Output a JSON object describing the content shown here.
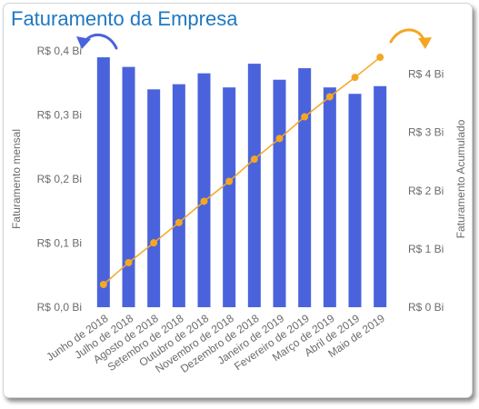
{
  "chart_data": {
    "type": "bar+line",
    "title": "Faturamento da Empresa",
    "categories": [
      "Junho de 2018",
      "Julho de 2018",
      "Agosto de 2018",
      "Setembro de 2018",
      "Outubro de 2018",
      "Novembro de 2018",
      "Dezembro de 2018",
      "Janeiro de 2019",
      "Fevereiro de 2019",
      "Março de 2019",
      "Abril de 2019",
      "Maio de 2019"
    ],
    "series": [
      {
        "name": "Faturamento mensal",
        "type": "bar",
        "axis": "left",
        "color": "#4a63dc",
        "values": [
          0.39,
          0.375,
          0.34,
          0.348,
          0.365,
          0.343,
          0.38,
          0.355,
          0.373,
          0.343,
          0.333,
          0.345
        ]
      },
      {
        "name": "Faturamento Acumulado",
        "type": "line",
        "axis": "right",
        "color": "#f5a623",
        "values": [
          0.39,
          0.765,
          1.105,
          1.453,
          1.818,
          2.161,
          2.541,
          2.896,
          3.269,
          3.612,
          3.945,
          4.29
        ]
      }
    ],
    "y_left": {
      "label": "Faturamento mensal",
      "range": [
        0,
        0.4
      ],
      "ticks": [
        0,
        0.1,
        0.2,
        0.3,
        0.4
      ],
      "tick_labels": [
        "R$ 0,0 Bi",
        "R$ 0,1 Bi",
        "R$ 0,2 Bi",
        "R$ 0,3 Bi",
        "R$ 0,4 Bi"
      ]
    },
    "y_right": {
      "label": "Faturamento Acumulado",
      "range": [
        0,
        4.4
      ],
      "ticks": [
        0,
        1,
        2,
        3,
        4
      ],
      "tick_labels": [
        "R$ 0 Bi",
        "R$ 1 Bi",
        "R$ 2 Bi",
        "R$ 3 Bi",
        "R$ 4 Bi"
      ]
    },
    "grid": false,
    "legend": "none",
    "annotations": [
      {
        "type": "arrow",
        "points_to": "left axis",
        "color": "#4a63dc"
      },
      {
        "type": "arrow",
        "points_to": "right axis",
        "color": "#f5a623"
      }
    ]
  }
}
